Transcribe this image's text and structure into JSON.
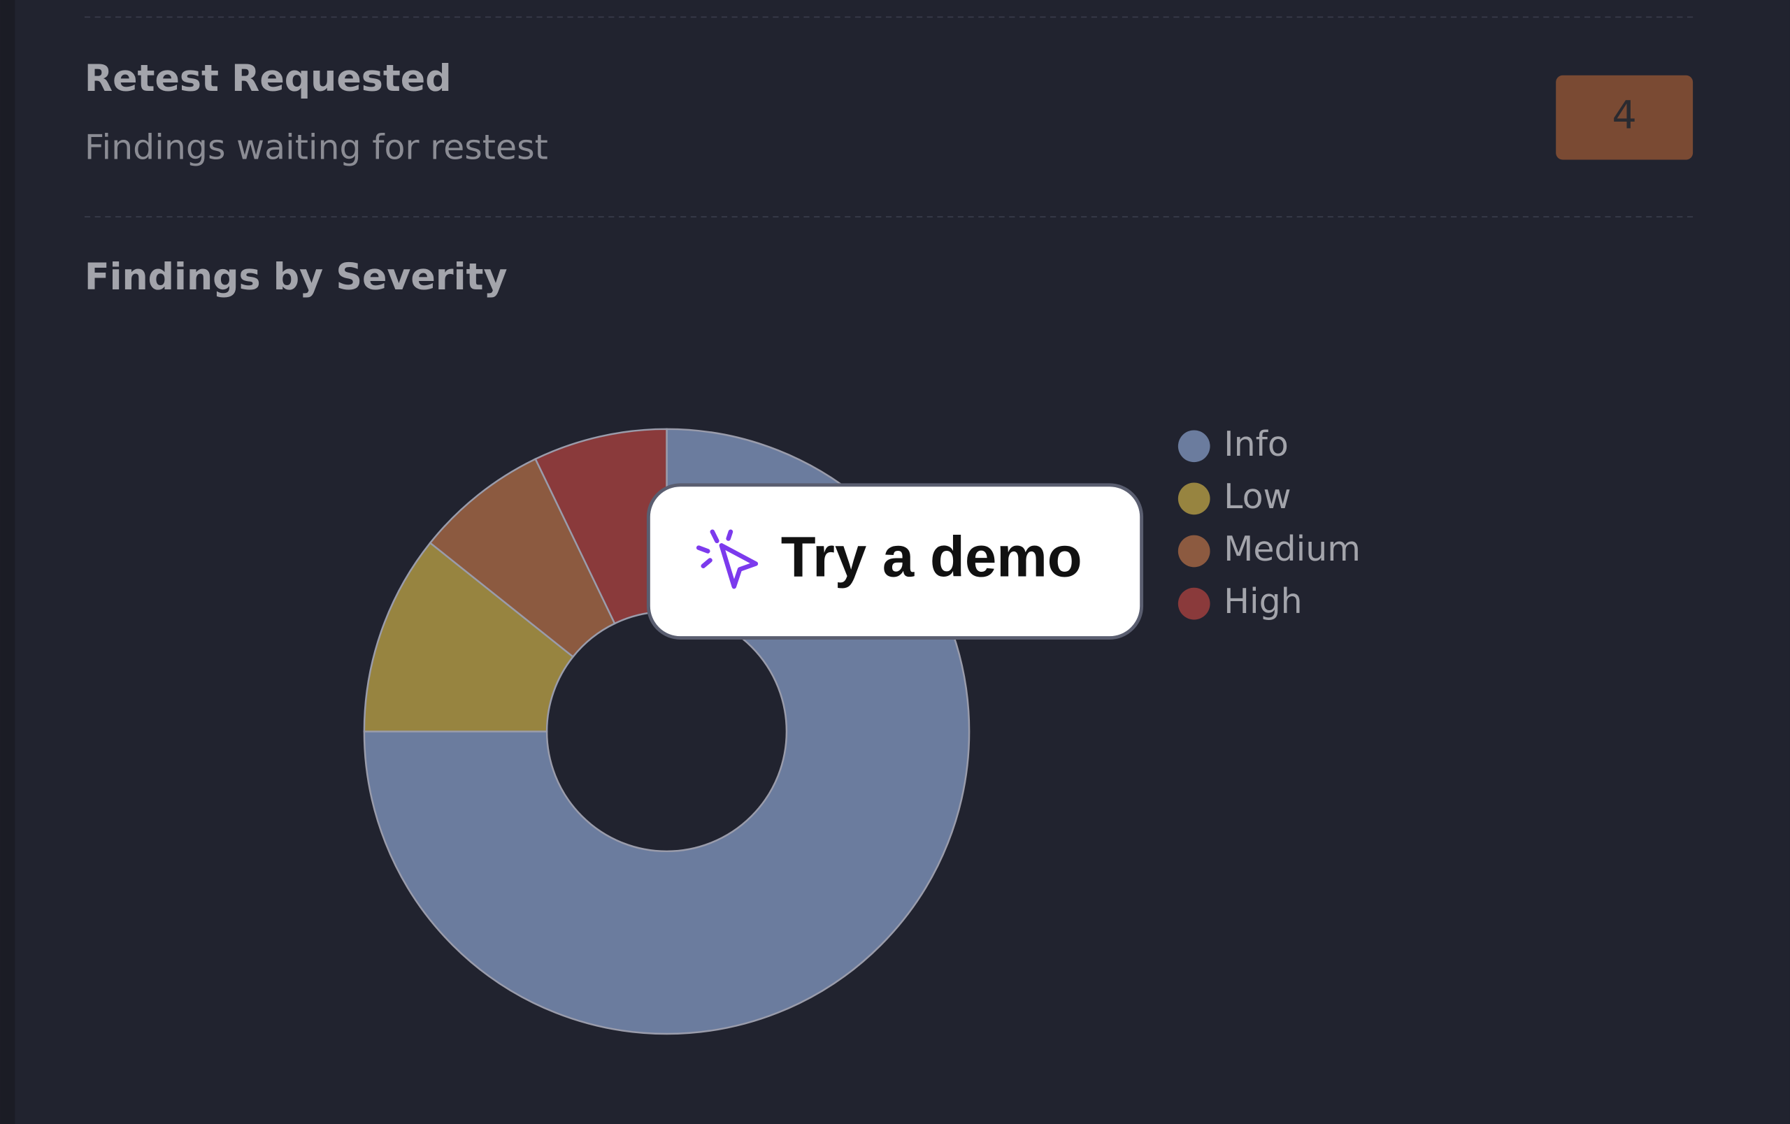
{
  "retest": {
    "title": "Retest Requested",
    "subtitle": "Findings waiting for restest",
    "count": 4
  },
  "chart_data": {
    "type": "pie",
    "title": "Findings by Severity",
    "categories": [
      "Info",
      "Low",
      "Medium",
      "High"
    ],
    "values": [
      21,
      3,
      2,
      2
    ],
    "colors": [
      "#6b7c9e",
      "#978440",
      "#8c5a40",
      "#8a3a3b"
    ],
    "legend": "right"
  },
  "demo_button": "Try a demo"
}
